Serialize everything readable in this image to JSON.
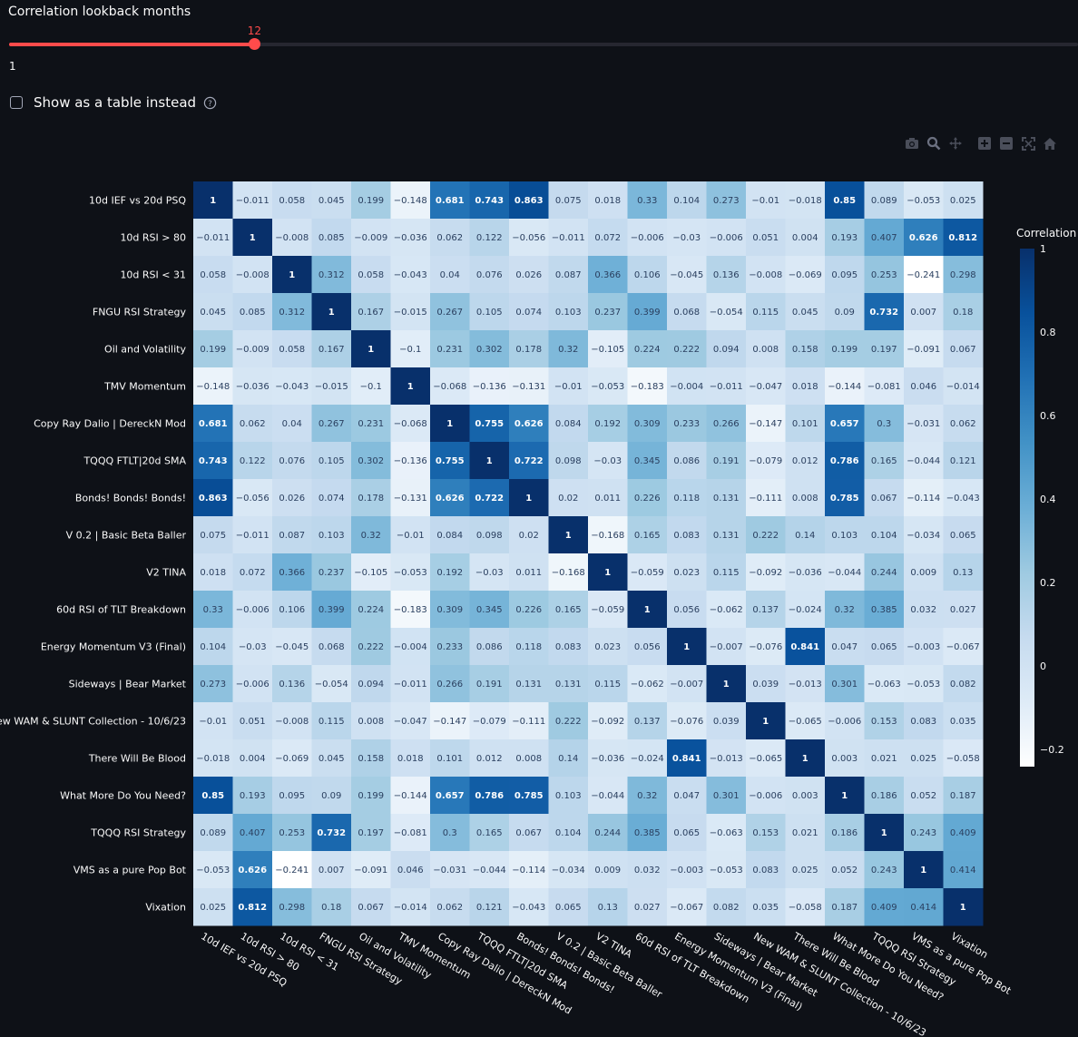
{
  "slider": {
    "label": "Correlation lookback months",
    "value": "12",
    "min_label": "1",
    "value_fraction": 0.2295
  },
  "toggle": {
    "label": "Show as a table instead",
    "checked": false
  },
  "modebar": {
    "icons": [
      "camera-icon",
      "zoom-icon",
      "pan-icon",
      "zoom-in-icon",
      "zoom-out-icon",
      "autoscale-icon",
      "home-icon"
    ]
  },
  "colors": {
    "accent": "#ff4b4b",
    "background": "#0e1117",
    "colorscale": "Blues"
  },
  "chart_data": {
    "type": "heatmap",
    "title": "",
    "colorbar_title": "Correlation",
    "colorbar_ticks": [
      "1",
      "0.8",
      "0.6",
      "0.4",
      "0.2",
      "0",
      "−0.2"
    ],
    "zmin": -0.241,
    "zmax": 1,
    "labels": [
      "10d IEF vs 20d PSQ",
      "10d RSI > 80",
      "10d RSI < 31",
      "FNGU RSI Strategy",
      "Oil and Volatility",
      "TMV Momentum",
      "Copy Ray Dalio | DereckN Mod",
      "TQQQ FTLT|20d SMA",
      "Bonds! Bonds! Bonds!",
      "V 0.2 |  Basic Beta Baller",
      "V2 TINA",
      "60d RSI of TLT Breakdown",
      "Energy Momentum V3 (Final)",
      "Sideways | Bear Market",
      "New WAM & SLUNT Collection - 10/6/23",
      "There Will Be Blood",
      "What More Do You Need?",
      "TQQQ RSI Strategy",
      "VMS as a pure Pop Bot",
      "Vixation"
    ],
    "z": [
      [
        "1",
        "−0.011",
        "0.058",
        "0.045",
        "0.199",
        "−0.148",
        "0.681",
        "0.743",
        "0.863",
        "0.075",
        "0.018",
        "0.33",
        "0.104",
        "0.273",
        "−0.01",
        "−0.018",
        "0.85",
        "0.089",
        "−0.053",
        "0.025"
      ],
      [
        "−0.011",
        "1",
        "−0.008",
        "0.085",
        "−0.009",
        "−0.036",
        "0.062",
        "0.122",
        "−0.056",
        "−0.011",
        "0.072",
        "−0.006",
        "−0.03",
        "−0.006",
        "0.051",
        "0.004",
        "0.193",
        "0.407",
        "0.626",
        "0.812"
      ],
      [
        "0.058",
        "−0.008",
        "1",
        "0.312",
        "0.058",
        "−0.043",
        "0.04",
        "0.076",
        "0.026",
        "0.087",
        "0.366",
        "0.106",
        "−0.045",
        "0.136",
        "−0.008",
        "−0.069",
        "0.095",
        "0.253",
        "−0.241",
        "0.298"
      ],
      [
        "0.045",
        "0.085",
        "0.312",
        "1",
        "0.167",
        "−0.015",
        "0.267",
        "0.105",
        "0.074",
        "0.103",
        "0.237",
        "0.399",
        "0.068",
        "−0.054",
        "0.115",
        "0.045",
        "0.09",
        "0.732",
        "0.007",
        "0.18"
      ],
      [
        "0.199",
        "−0.009",
        "0.058",
        "0.167",
        "1",
        "−0.1",
        "0.231",
        "0.302",
        "0.178",
        "0.32",
        "−0.105",
        "0.224",
        "0.222",
        "0.094",
        "0.008",
        "0.158",
        "0.199",
        "0.197",
        "−0.091",
        "0.067"
      ],
      [
        "−0.148",
        "−0.036",
        "−0.043",
        "−0.015",
        "−0.1",
        "1",
        "−0.068",
        "−0.136",
        "−0.131",
        "−0.01",
        "−0.053",
        "−0.183",
        "−0.004",
        "−0.011",
        "−0.047",
        "0.018",
        "−0.144",
        "−0.081",
        "0.046",
        "−0.014"
      ],
      [
        "0.681",
        "0.062",
        "0.04",
        "0.267",
        "0.231",
        "−0.068",
        "1",
        "0.755",
        "0.626",
        "0.084",
        "0.192",
        "0.309",
        "0.233",
        "0.266",
        "−0.147",
        "0.101",
        "0.657",
        "0.3",
        "−0.031",
        "0.062"
      ],
      [
        "0.743",
        "0.122",
        "0.076",
        "0.105",
        "0.302",
        "−0.136",
        "0.755",
        "1",
        "0.722",
        "0.098",
        "−0.03",
        "0.345",
        "0.086",
        "0.191",
        "−0.079",
        "0.012",
        "0.786",
        "0.165",
        "−0.044",
        "0.121"
      ],
      [
        "0.863",
        "−0.056",
        "0.026",
        "0.074",
        "0.178",
        "−0.131",
        "0.626",
        "0.722",
        "1",
        "0.02",
        "0.011",
        "0.226",
        "0.118",
        "0.131",
        "−0.111",
        "0.008",
        "0.785",
        "0.067",
        "−0.114",
        "−0.043"
      ],
      [
        "0.075",
        "−0.011",
        "0.087",
        "0.103",
        "0.32",
        "−0.01",
        "0.084",
        "0.098",
        "0.02",
        "1",
        "−0.168",
        "0.165",
        "0.083",
        "0.131",
        "0.222",
        "0.14",
        "0.103",
        "0.104",
        "−0.034",
        "0.065"
      ],
      [
        "0.018",
        "0.072",
        "0.366",
        "0.237",
        "−0.105",
        "−0.053",
        "0.192",
        "−0.03",
        "0.011",
        "−0.168",
        "1",
        "−0.059",
        "0.023",
        "0.115",
        "−0.092",
        "−0.036",
        "−0.044",
        "0.244",
        "0.009",
        "0.13"
      ],
      [
        "0.33",
        "−0.006",
        "0.106",
        "0.399",
        "0.224",
        "−0.183",
        "0.309",
        "0.345",
        "0.226",
        "0.165",
        "−0.059",
        "1",
        "0.056",
        "−0.062",
        "0.137",
        "−0.024",
        "0.32",
        "0.385",
        "0.032",
        "0.027"
      ],
      [
        "0.104",
        "−0.03",
        "−0.045",
        "0.068",
        "0.222",
        "−0.004",
        "0.233",
        "0.086",
        "0.118",
        "0.083",
        "0.023",
        "0.056",
        "1",
        "−0.007",
        "−0.076",
        "0.841",
        "0.047",
        "0.065",
        "−0.003",
        "−0.067"
      ],
      [
        "0.273",
        "−0.006",
        "0.136",
        "−0.054",
        "0.094",
        "−0.011",
        "0.266",
        "0.191",
        "0.131",
        "0.131",
        "0.115",
        "−0.062",
        "−0.007",
        "1",
        "0.039",
        "−0.013",
        "0.301",
        "−0.063",
        "−0.053",
        "0.082"
      ],
      [
        "−0.01",
        "0.051",
        "−0.008",
        "0.115",
        "0.008",
        "−0.047",
        "−0.147",
        "−0.079",
        "−0.111",
        "0.222",
        "−0.092",
        "0.137",
        "−0.076",
        "0.039",
        "1",
        "−0.065",
        "−0.006",
        "0.153",
        "0.083",
        "0.035"
      ],
      [
        "−0.018",
        "0.004",
        "−0.069",
        "0.045",
        "0.158",
        "0.018",
        "0.101",
        "0.012",
        "0.008",
        "0.14",
        "−0.036",
        "−0.024",
        "0.841",
        "−0.013",
        "−0.065",
        "1",
        "0.003",
        "0.021",
        "0.025",
        "−0.058"
      ],
      [
        "0.85",
        "0.193",
        "0.095",
        "0.09",
        "0.199",
        "−0.144",
        "0.657",
        "0.786",
        "0.785",
        "0.103",
        "−0.044",
        "0.32",
        "0.047",
        "0.301",
        "−0.006",
        "0.003",
        "1",
        "0.186",
        "0.052",
        "0.187"
      ],
      [
        "0.089",
        "0.407",
        "0.253",
        "0.732",
        "0.197",
        "−0.081",
        "0.3",
        "0.165",
        "0.067",
        "0.104",
        "0.244",
        "0.385",
        "0.065",
        "−0.063",
        "0.153",
        "0.021",
        "0.186",
        "1",
        "0.243",
        "0.409"
      ],
      [
        "−0.053",
        "0.626",
        "−0.241",
        "0.007",
        "−0.091",
        "0.046",
        "−0.031",
        "−0.044",
        "−0.114",
        "−0.034",
        "0.009",
        "0.032",
        "−0.003",
        "−0.053",
        "0.083",
        "0.025",
        "0.052",
        "0.243",
        "1",
        "0.414"
      ],
      [
        "0.025",
        "0.812",
        "0.298",
        "0.18",
        "0.067",
        "−0.014",
        "0.062",
        "0.121",
        "−0.043",
        "0.065",
        "0.13",
        "0.027",
        "−0.067",
        "0.082",
        "0.035",
        "−0.058",
        "0.187",
        "0.409",
        "0.414",
        "1"
      ]
    ]
  }
}
